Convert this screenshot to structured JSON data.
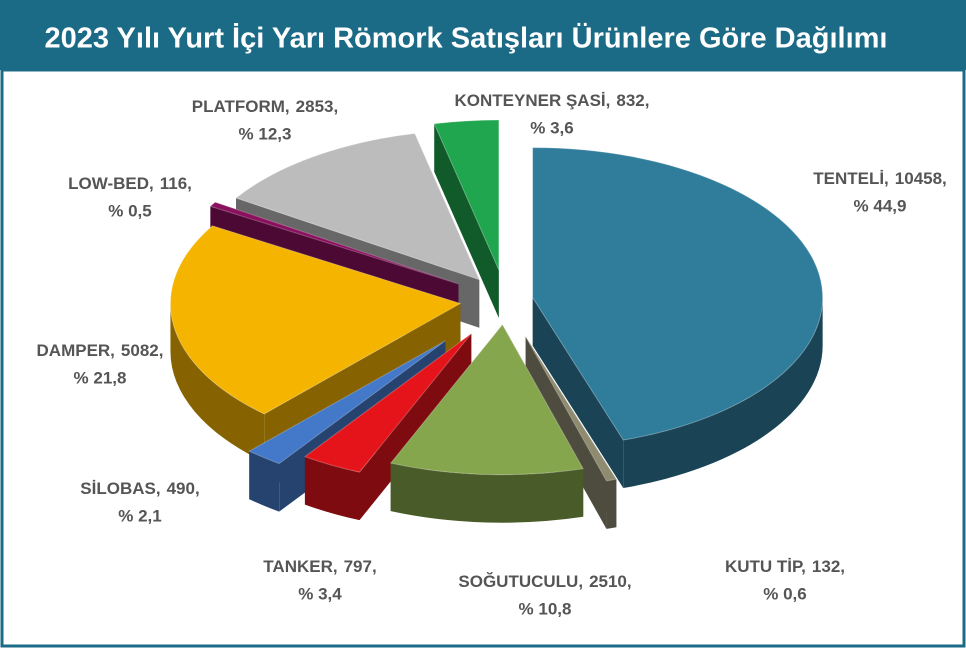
{
  "chart_data": {
    "type": "pie3d",
    "title": "2023 Yılı Yurt İçi Yarı Römork Satışları Ürünlere Göre Dağılımı",
    "categories": [
      "TENTELİ,",
      "KUTU TİP,",
      "SOĞUTUCULU,",
      "TANKER,",
      "SİLOBAS,",
      "DAMPER,",
      "LOW-BED,",
      "PLATFORM,",
      "KONTEYNER ŞASİ,"
    ],
    "values": [
      10458,
      132,
      2510,
      797,
      490,
      5082,
      116,
      2853,
      832
    ],
    "value_labels": [
      "10458,",
      "132,",
      "2510,",
      "797,",
      "490,",
      "5082,",
      "116,",
      "2853,",
      "832,"
    ],
    "percents": [
      44.9,
      0.6,
      10.8,
      3.4,
      2.1,
      21.8,
      0.5,
      12.3,
      3.6
    ],
    "percent_labels": [
      "% 44,9",
      "% 0,6",
      "% 10,8",
      "% 3,4",
      "% 2,1",
      "% 21,8",
      "% 0,5",
      "% 12,3",
      "% 3,6"
    ],
    "colors": [
      "#2f7c9b",
      "#8e8b70",
      "#86a64d",
      "#e5141b",
      "#4379c8",
      "#f4b400",
      "#8b115f",
      "#bcbcbc",
      "#1fa64e"
    ]
  }
}
